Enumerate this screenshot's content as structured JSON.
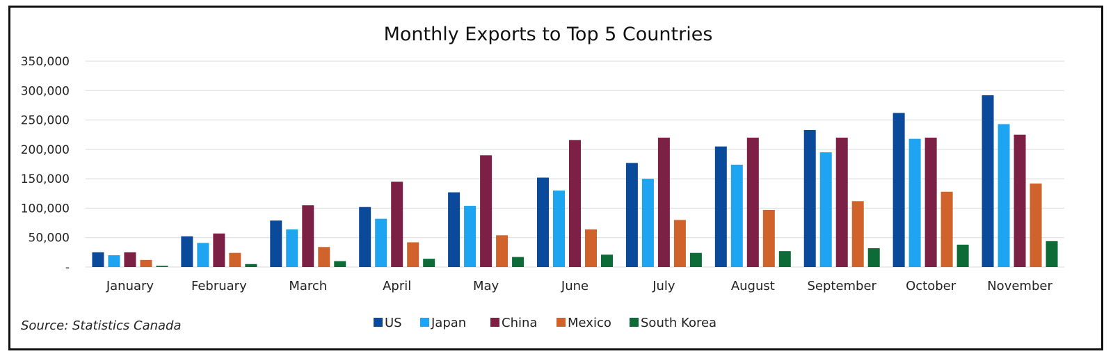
{
  "chart_data": {
    "type": "bar",
    "title": "Monthly Exports to Top 5 Countries",
    "source": "Source: Statistics Canada",
    "categories": [
      "January",
      "February",
      "March",
      "April",
      "May",
      "June",
      "July",
      "August",
      "September",
      "October",
      "November"
    ],
    "y_ticks": [
      "-",
      "50,000",
      "100,000",
      "150,000",
      "200,000",
      "250,000",
      "300,000",
      "350,000"
    ],
    "ylim": [
      0,
      350000
    ],
    "grid": true,
    "legend_position": "bottom",
    "series": [
      {
        "name": "US",
        "color": "#0b4a9a",
        "values": [
          25000,
          52000,
          79000,
          102000,
          127000,
          152000,
          177000,
          205000,
          233000,
          262000,
          292000
        ]
      },
      {
        "name": "Japan",
        "color": "#1ea4f0",
        "values": [
          20000,
          41000,
          64000,
          82000,
          104000,
          130000,
          150000,
          174000,
          195000,
          218000,
          243000
        ]
      },
      {
        "name": "China",
        "color": "#7d2046",
        "values": [
          25000,
          57000,
          105000,
          145000,
          190000,
          216000,
          220000,
          220000,
          220000,
          220000,
          225000
        ]
      },
      {
        "name": "Mexico",
        "color": "#d0622c",
        "values": [
          12000,
          24000,
          34000,
          42000,
          54000,
          64000,
          80000,
          97000,
          112000,
          128000,
          142000
        ]
      },
      {
        "name": "South Korea",
        "color": "#0d6b38",
        "values": [
          2000,
          5000,
          10000,
          14000,
          17000,
          21000,
          24000,
          27000,
          32000,
          38000,
          44000
        ]
      }
    ]
  }
}
